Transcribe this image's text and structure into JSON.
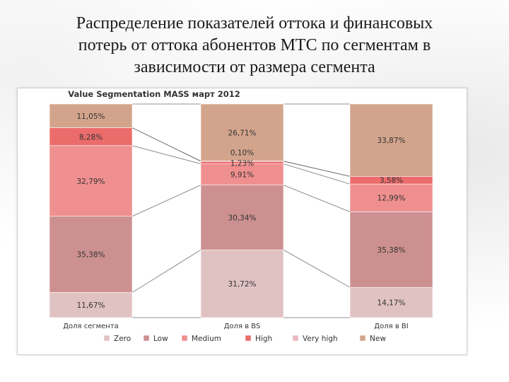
{
  "slide": {
    "title": "Распределение показателей оттока и финансовых\nпотерь от оттока абонентов МТС по сегментам в\nзависимости от размера сегмента"
  },
  "chart_data": {
    "type": "bar",
    "stacked": true,
    "percent_stacked": true,
    "title": "Value Segmentation MASS март 2012",
    "categories": [
      "Доля сегмента",
      "Доля в BS",
      "Доля в BI"
    ],
    "series": [
      {
        "name": "Zero",
        "color": "#e1c2c3",
        "values": [
          11.67,
          31.72,
          14.17
        ]
      },
      {
        "name": "Low",
        "color": "#cd9090",
        "values": [
          35.38,
          30.34,
          35.38
        ]
      },
      {
        "name": "Medium",
        "color": "#f08f8f",
        "values": [
          32.79,
          9.91,
          12.99
        ]
      },
      {
        "name": "High",
        "color": "#ec6c6c",
        "values": [
          8.28,
          1.23,
          3.58
        ]
      },
      {
        "name": "Very high",
        "color": "#e9b7bf",
        "values": [
          0.0,
          0.1,
          0.0
        ]
      },
      {
        "name": "New",
        "color": "#d3a48c",
        "values": [
          11.05,
          26.71,
          33.87
        ]
      }
    ],
    "labels": [
      [
        "11,67%",
        "35,38%",
        "32,79%",
        "8,28%",
        "",
        "11,05%"
      ],
      [
        "31,72%",
        "30,34%",
        "9,91%",
        "1,23%",
        "0,10%",
        "26,71%"
      ],
      [
        "14,17%",
        "35,38%",
        "12,99%",
        "3,58%",
        "",
        "33,87%"
      ]
    ],
    "connectors": true,
    "legend_position": "bottom",
    "grid": false
  }
}
